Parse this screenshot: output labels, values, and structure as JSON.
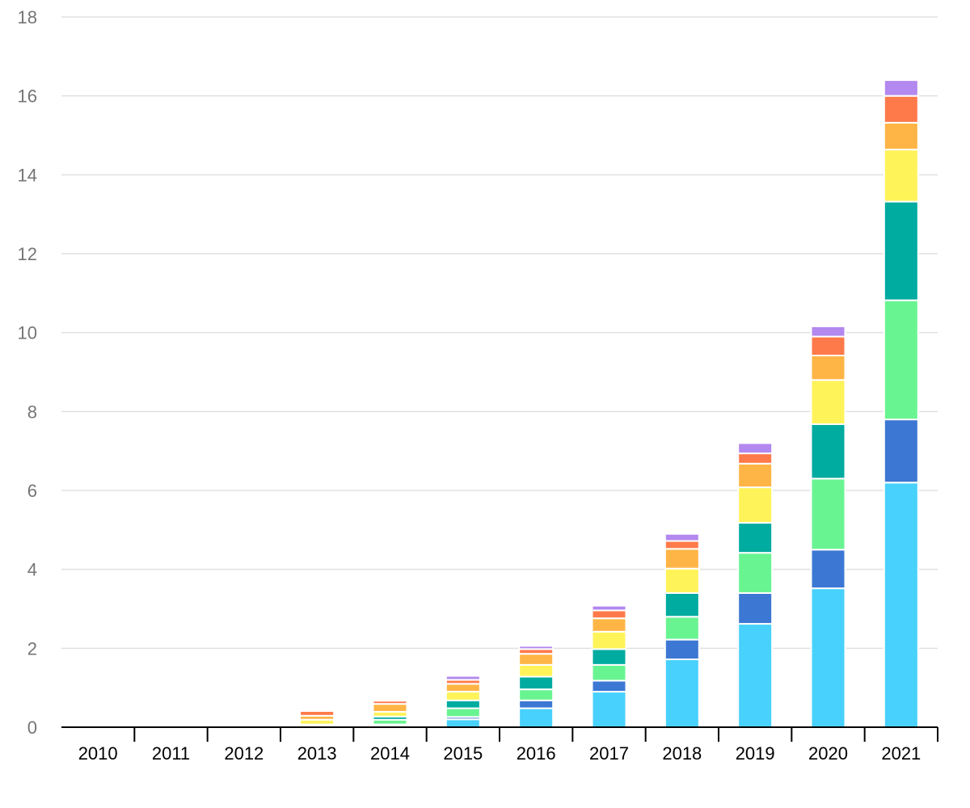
{
  "chart_data": {
    "type": "bar",
    "stacked": true,
    "title": "",
    "xlabel": "",
    "ylabel": "",
    "ylim": [
      0,
      18
    ],
    "yticks": [
      "0",
      "2",
      "4",
      "6",
      "8",
      "10",
      "12",
      "14",
      "16",
      "18"
    ],
    "grid": true,
    "legend": "none",
    "categories": [
      "2010",
      "2011",
      "2012",
      "2013",
      "2014",
      "2015",
      "2016",
      "2017",
      "2018",
      "2019",
      "2020",
      "2021"
    ],
    "series": [
      {
        "color": "#48d1fc",
        "values": [
          0,
          0,
          0,
          0.01,
          0.04,
          0.2,
          0.48,
          0.9,
          1.72,
          2.62,
          3.52,
          6.2
        ]
      },
      {
        "color": "#3c78d3",
        "values": [
          0,
          0,
          0,
          0.01,
          0.03,
          0.06,
          0.2,
          0.28,
          0.5,
          0.78,
          0.98,
          1.6
        ]
      },
      {
        "color": "#69f492",
        "values": [
          0,
          0,
          0,
          0.03,
          0.12,
          0.22,
          0.28,
          0.4,
          0.58,
          1.02,
          1.8,
          3.02
        ]
      },
      {
        "color": "#00ab9f",
        "values": [
          0,
          0,
          0,
          0.02,
          0.08,
          0.2,
          0.32,
          0.4,
          0.6,
          0.76,
          1.38,
          2.5
        ]
      },
      {
        "color": "#fff35a",
        "values": [
          0,
          0,
          0,
          0.12,
          0.12,
          0.22,
          0.3,
          0.44,
          0.62,
          0.9,
          1.12,
          1.32
        ]
      },
      {
        "color": "#ffb545",
        "values": [
          0,
          0,
          0,
          0.1,
          0.2,
          0.2,
          0.28,
          0.34,
          0.5,
          0.6,
          0.62,
          0.68
        ]
      },
      {
        "color": "#ff7a4a",
        "values": [
          0,
          0,
          0,
          0.12,
          0.08,
          0.1,
          0.12,
          0.2,
          0.2,
          0.26,
          0.48,
          0.68
        ]
      },
      {
        "color": "#b388ef",
        "values": [
          0,
          0,
          0,
          0,
          0,
          0.1,
          0.08,
          0.12,
          0.18,
          0.26,
          0.26,
          0.4
        ]
      }
    ]
  }
}
